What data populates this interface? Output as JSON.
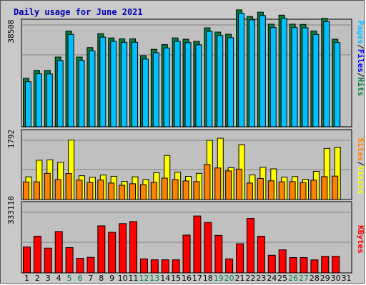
{
  "chart_data": {
    "type": "bar",
    "title": "Daily usage for June 2021",
    "x": [
      "1",
      "2",
      "3",
      "4",
      "5",
      "6",
      "7",
      "8",
      "9",
      "10",
      "11",
      "12",
      "13",
      "14",
      "15",
      "16",
      "17",
      "18",
      "19",
      "20",
      "21",
      "22",
      "23",
      "24",
      "25",
      "26",
      "27",
      "28",
      "29",
      "30",
      "31"
    ],
    "weekend_days": [
      "5",
      "6",
      "12",
      "13",
      "19",
      "20",
      "26",
      "27"
    ],
    "colors": {
      "hits": "#008040",
      "files": "#00c0ff",
      "visits": "#ffff00",
      "sites": "#ff8000",
      "kbytes": "#ff0000",
      "label_pages": "#00c0ff",
      "label_files": "#0000ff",
      "label_hits": "#008040",
      "label_sites": "#ff8000",
      "label_visits": "#ffff00",
      "label_kbytes": "#ff0000",
      "weekend_label": "#008040",
      "weekday_label": "#000000"
    },
    "panels": [
      {
        "id": "hits-files",
        "ymax": 38508,
        "ymax_label": "38508",
        "labels": [
          "Pages",
          "Files",
          "Hits"
        ],
        "series": [
          {
            "name": "Hits",
            "values": [
              18330,
              21320,
              21320,
              26360,
              36210,
              26360,
              29960,
              35200,
              33600,
              33240,
              33250,
              26900,
              29300,
              31070,
              33600,
              33120,
              32300,
              37400,
              35810,
              34980,
              44200,
              41720,
              43340,
              38800,
              42200,
              38800,
              38700,
              36210,
              41020,
              33120,
              0
            ]
          },
          {
            "name": "Files",
            "values": [
              17050,
              20040,
              19980,
              25080,
              34930,
              25080,
              28680,
              33920,
              32320,
              31960,
              31970,
              25620,
              28020,
              29800,
              32320,
              31840,
              31020,
              36120,
              34530,
              33700,
              42920,
              40440,
              42060,
              37520,
              40920,
              37520,
              37420,
              34930,
              39740,
              31840,
              0
            ]
          }
        ]
      },
      {
        "id": "visits-sites",
        "ymax": 1792,
        "ymax_label": "1792",
        "labels": [
          "Sites",
          "Visits"
        ],
        "series": [
          {
            "name": "Visits",
            "values": [
              687,
              1190,
              1202,
              1130,
              1803,
              720,
              675,
              742,
              703,
              548,
              687,
              604,
              810,
              1333,
              828,
              701,
              792,
              1790,
              1855,
              962,
              1662,
              745,
              977,
              928,
              677,
              696,
              613,
              853,
              1546,
              1584,
              0
            ]
          },
          {
            "name": "Sites",
            "values": [
              530,
              534,
              792,
              606,
              785,
              588,
              518,
              590,
              499,
              432,
              478,
              451,
              518,
              648,
              606,
              563,
              542,
              1060,
              955,
              866,
              921,
              499,
              638,
              567,
              536,
              541,
              510,
              585,
              693,
              709,
              0
            ]
          }
        ]
      },
      {
        "id": "kbytes",
        "ymax": 333110,
        "ymax_label": "333110",
        "labels": [
          "KBytes"
        ],
        "series": [
          {
            "name": "KBytes",
            "values": [
              142500,
              202000,
              136200,
              227800,
              139400,
              80100,
              85700,
              258800,
              223000,
              271200,
              282300,
              77000,
              72000,
              72000,
              72000,
              208000,
              313000,
              277100,
              206300,
              77000,
              160400,
              299500,
              202000,
              97000,
              126900,
              84200,
              84200,
              71500,
              91100,
              91100,
              0
            ]
          }
        ]
      }
    ]
  }
}
